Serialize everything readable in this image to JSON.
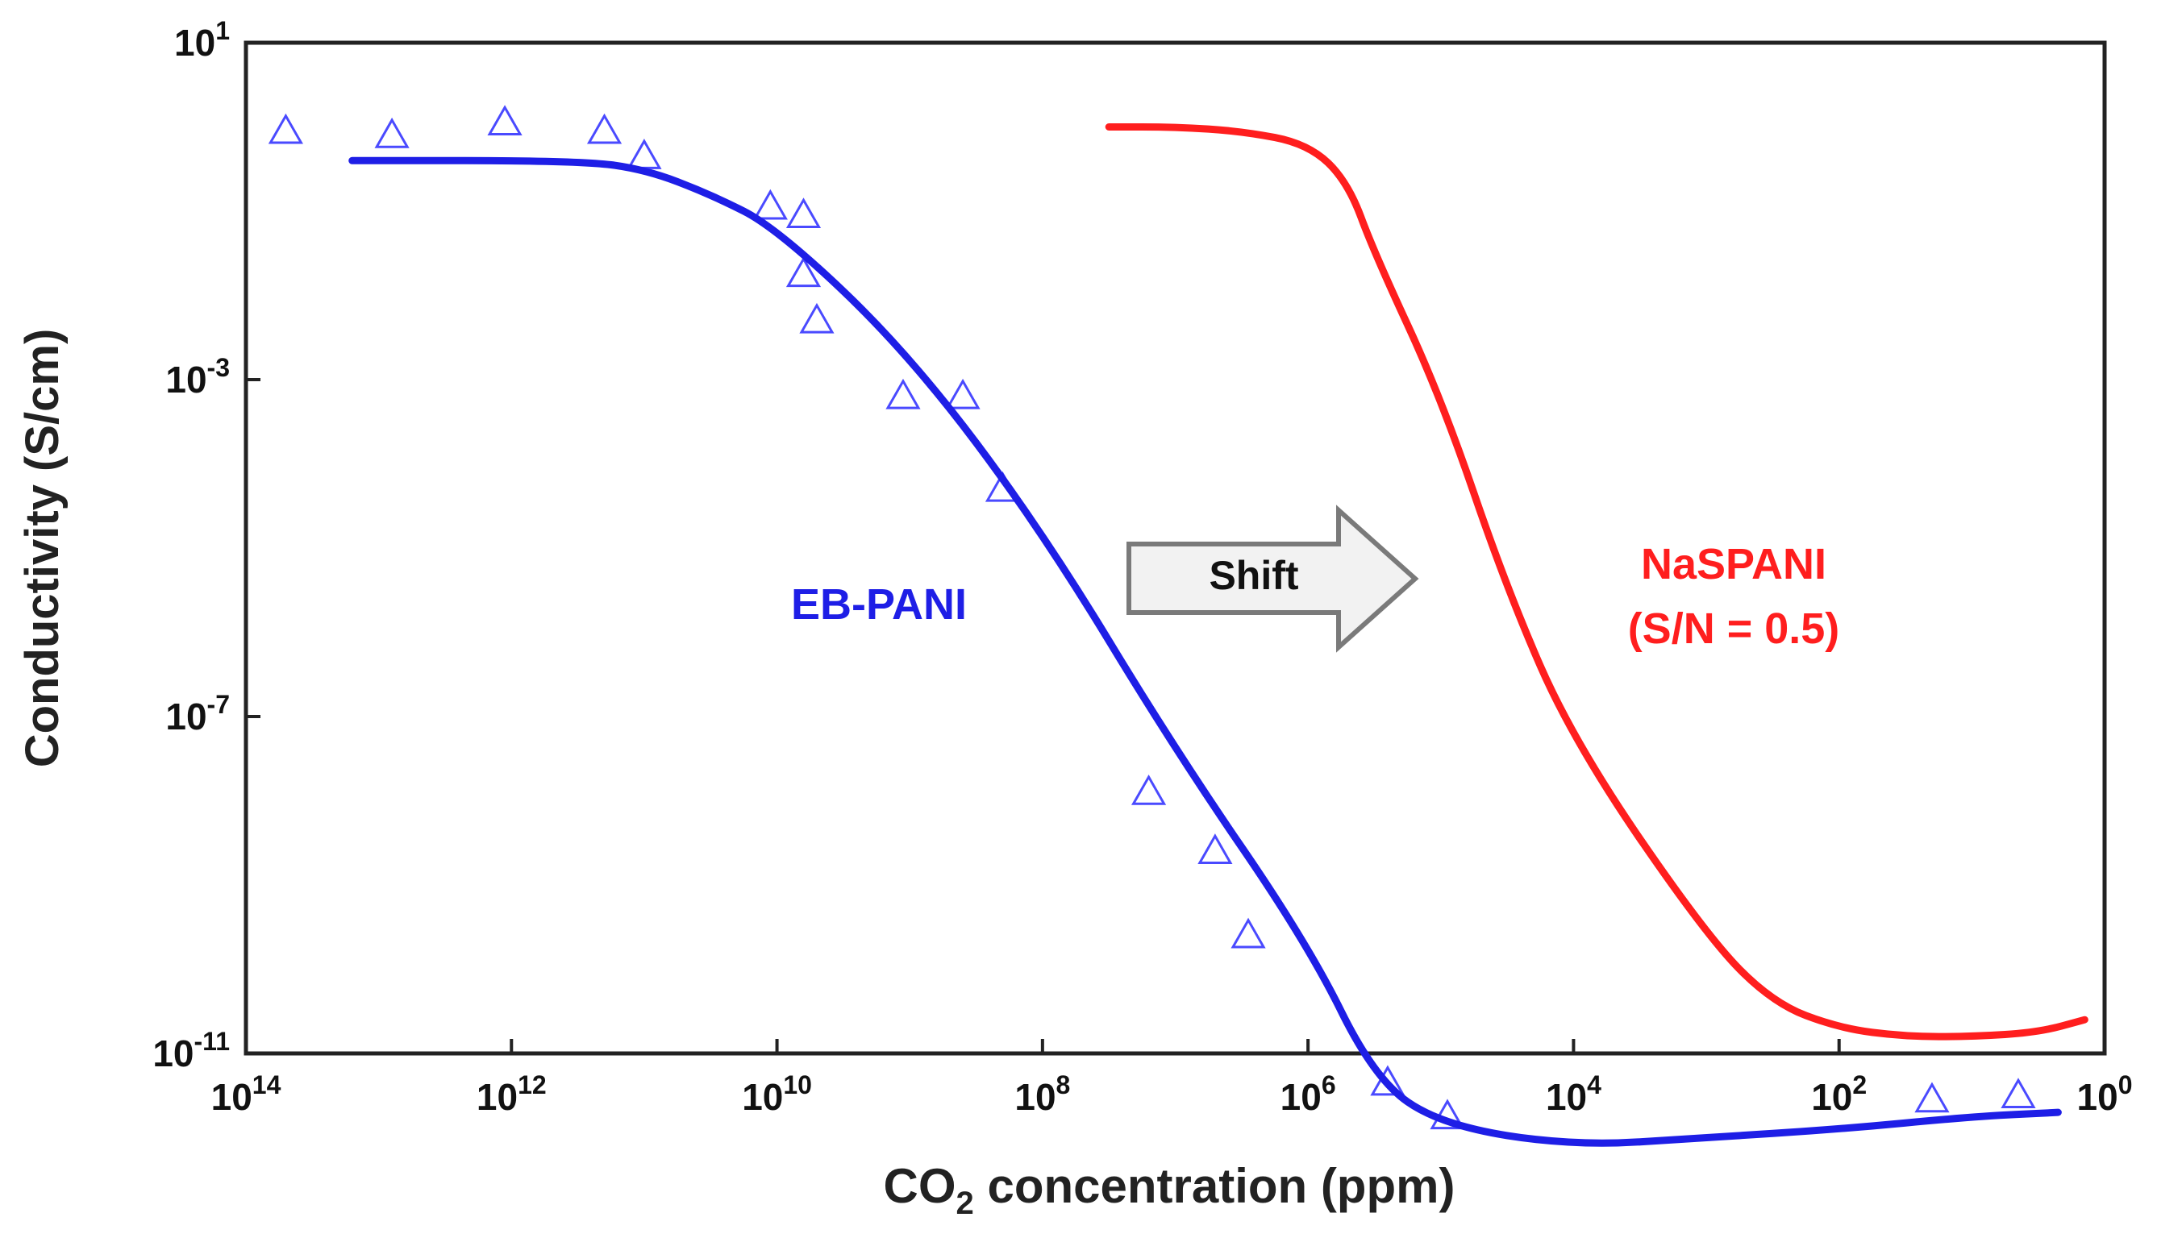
{
  "chart_data": {
    "type": "scatter",
    "title": "",
    "xlabel": {
      "prefix": "CO",
      "subscript": "2",
      "suffix": " concentration (ppm)"
    },
    "ylabel": "Conductivity (S/cm)",
    "x_scale": "log",
    "y_scale": "log",
    "x_reversed": true,
    "xlim_exp": [
      14,
      0
    ],
    "ylim_exp": [
      -11,
      1
    ],
    "x_ticks": [
      {
        "base": "10",
        "exp": "14",
        "value_exp": 14
      },
      {
        "base": "10",
        "exp": "12",
        "value_exp": 12
      },
      {
        "base": "10",
        "exp": "10",
        "value_exp": 10
      },
      {
        "base": "10",
        "exp": "8",
        "value_exp": 8
      },
      {
        "base": "10",
        "exp": "6",
        "value_exp": 6
      },
      {
        "base": "10",
        "exp": "4",
        "value_exp": 4
      },
      {
        "base": "10",
        "exp": "2",
        "value_exp": 2
      },
      {
        "base": "10",
        "exp": "0",
        "value_exp": 0
      }
    ],
    "y_ticks": [
      {
        "base": "10",
        "exp": "1",
        "value_exp": 1
      },
      {
        "base": "10",
        "exp": "-3",
        "value_exp": -3
      },
      {
        "base": "10",
        "exp": "-7",
        "value_exp": -7
      },
      {
        "base": "10",
        "exp": "-11",
        "value_exp": -11
      }
    ],
    "series": [
      {
        "name": "EB-PANI data",
        "kind": "points",
        "marker": "open-triangle",
        "color": "#4a4aff",
        "points_log": [
          [
            13.7,
            -0.05
          ],
          [
            12.9,
            -0.1
          ],
          [
            12.05,
            0.05
          ],
          [
            11.3,
            -0.05
          ],
          [
            11.0,
            -0.35
          ],
          [
            10.05,
            -0.95
          ],
          [
            9.8,
            -1.05
          ],
          [
            9.8,
            -1.75
          ],
          [
            9.7,
            -2.3
          ],
          [
            9.05,
            -3.2
          ],
          [
            8.6,
            -3.2
          ],
          [
            8.3,
            -4.3
          ],
          [
            7.2,
            -7.9
          ],
          [
            6.7,
            -8.6
          ],
          [
            6.45,
            -9.6
          ],
          [
            5.4,
            -11.35
          ],
          [
            4.95,
            -11.75
          ],
          [
            1.3,
            -11.55
          ],
          [
            0.65,
            -11.5
          ]
        ]
      },
      {
        "name": "EB-PANI fit",
        "kind": "line",
        "color": "#1e1ee6",
        "points_log": [
          [
            13.2,
            -0.4
          ],
          [
            11.5,
            -0.4
          ],
          [
            11.0,
            -0.5
          ],
          [
            10.5,
            -0.8
          ],
          [
            10.0,
            -1.2
          ],
          [
            9.0,
            -2.7
          ],
          [
            8.0,
            -4.8
          ],
          [
            7.0,
            -7.4
          ],
          [
            6.0,
            -9.7
          ],
          [
            5.5,
            -11.3
          ],
          [
            5.0,
            -11.85
          ],
          [
            4.0,
            -12.1
          ],
          [
            3.0,
            -12.0
          ],
          [
            2.0,
            -11.9
          ],
          [
            1.0,
            -11.75
          ],
          [
            0.35,
            -11.7
          ]
        ]
      },
      {
        "name": "NaSPANI (S/N = 0.5) fit",
        "kind": "line",
        "color": "#ff1e1e",
        "points_log": [
          [
            7.5,
            0.0
          ],
          [
            7.0,
            0.0
          ],
          [
            6.5,
            -0.05
          ],
          [
            6.0,
            -0.2
          ],
          [
            5.7,
            -0.65
          ],
          [
            5.5,
            -1.5
          ],
          [
            5.0,
            -3.2
          ],
          [
            4.5,
            -5.5
          ],
          [
            4.0,
            -7.3
          ],
          [
            3.0,
            -9.6
          ],
          [
            2.5,
            -10.4
          ],
          [
            2.0,
            -10.7
          ],
          [
            1.5,
            -10.8
          ],
          [
            1.0,
            -10.8
          ],
          [
            0.5,
            -10.75
          ],
          [
            0.15,
            -10.6
          ]
        ]
      }
    ],
    "annotations": {
      "shift_label": "Shift",
      "eb_pani_label": "EB-PANI",
      "naspani_label_line1": "NaSPANI",
      "naspani_label_line2": "(S/N = 0.5)"
    }
  }
}
